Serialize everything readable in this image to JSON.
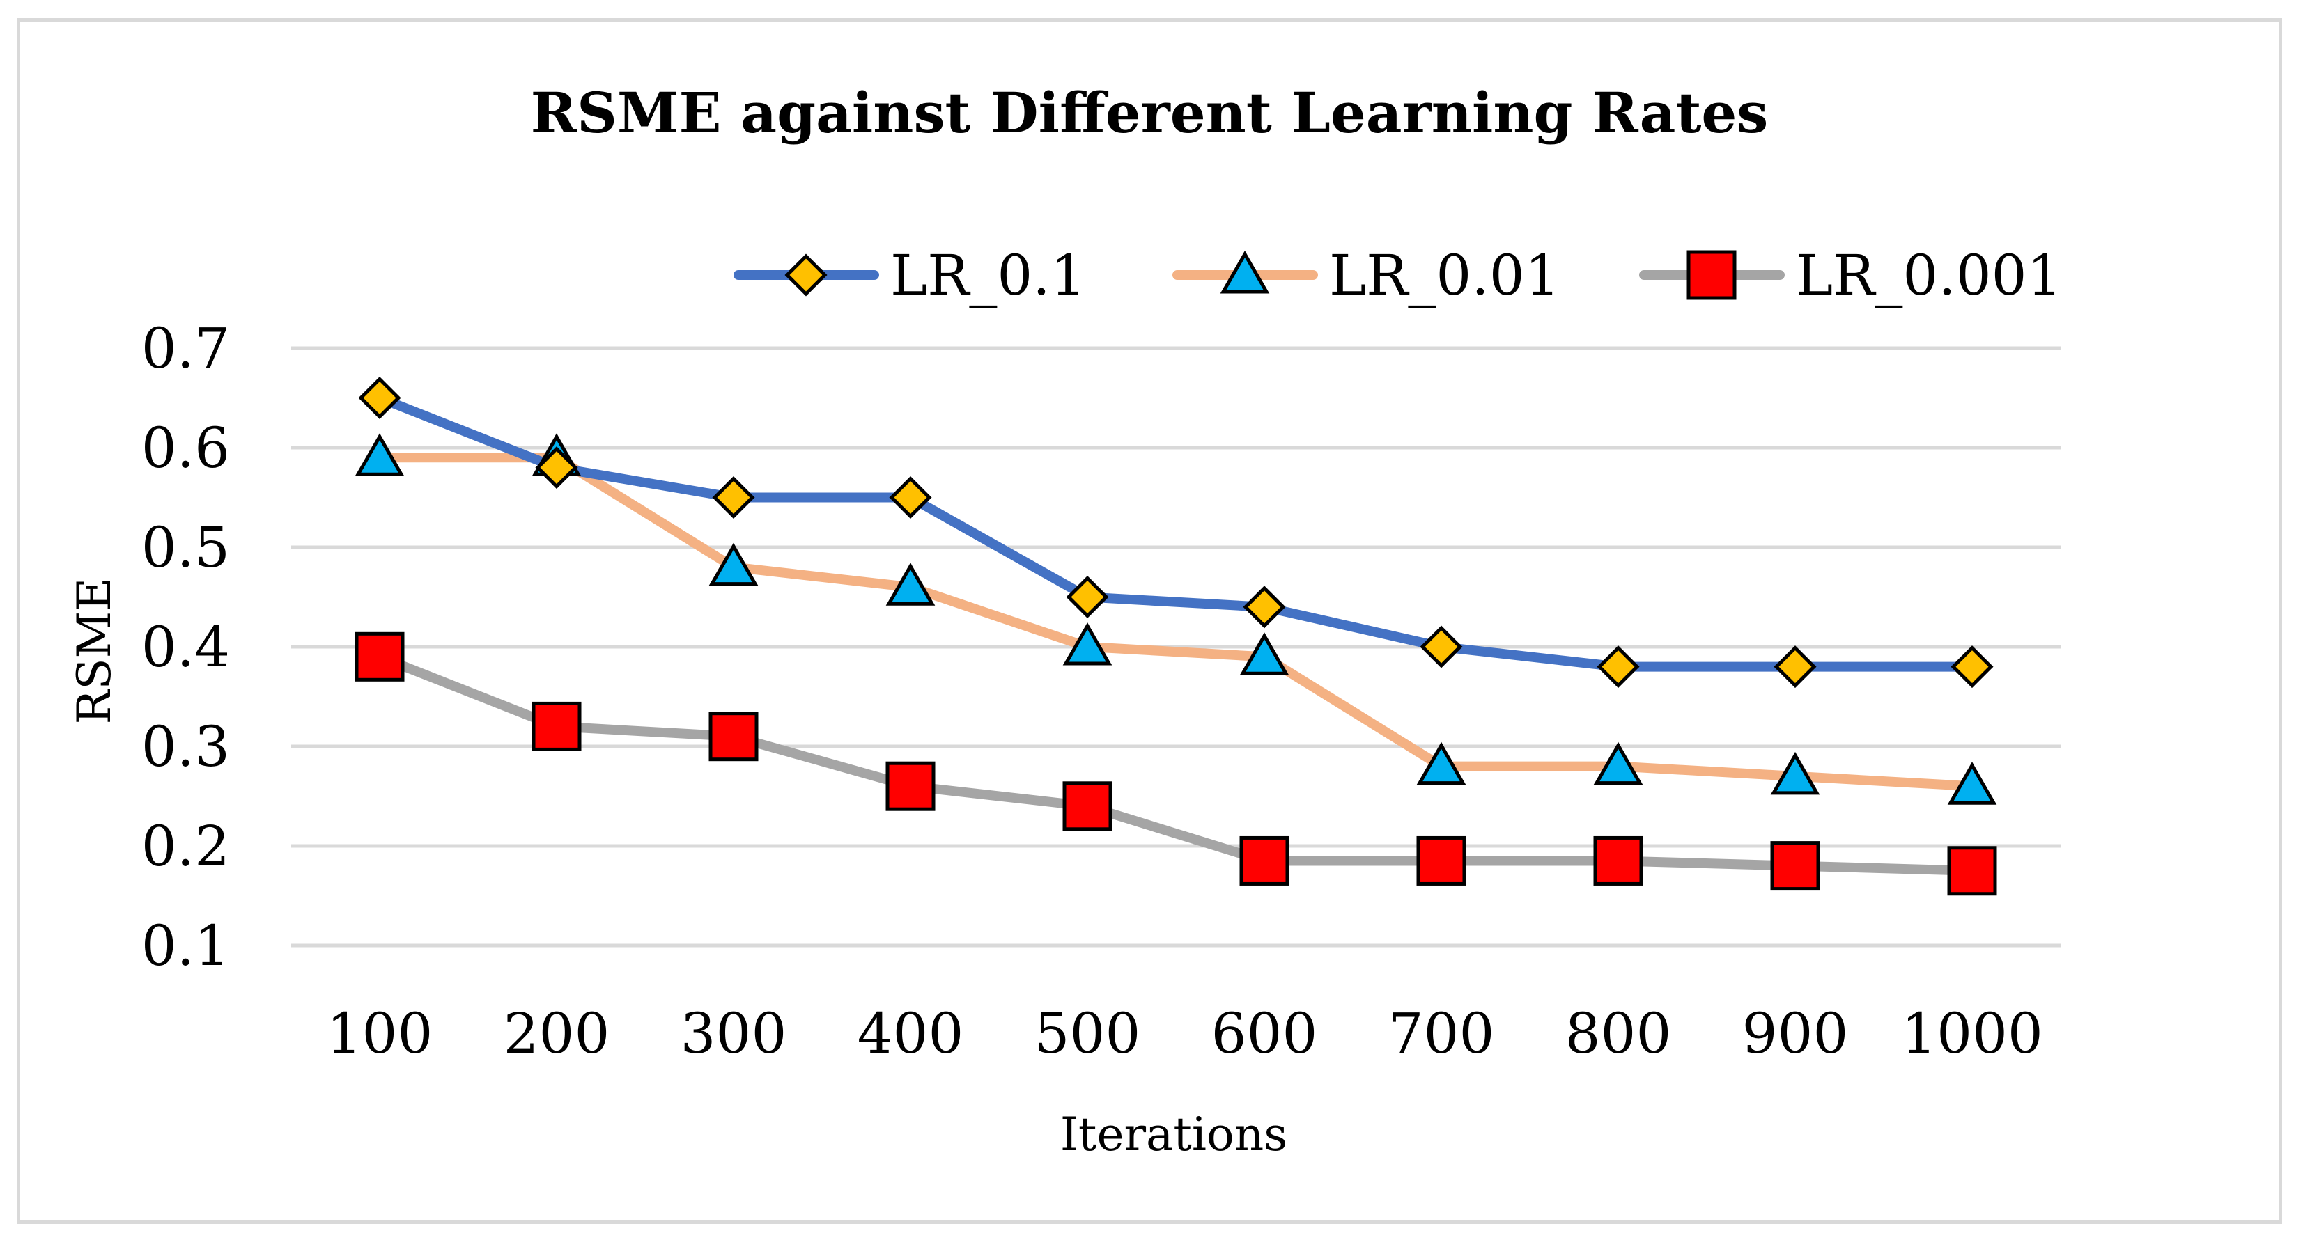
{
  "chart_data": {
    "type": "line",
    "title": "RSME against Different Learning Rates",
    "xlabel": "Iterations",
    "ylabel": "RSME",
    "categories": [
      "100",
      "200",
      "300",
      "400",
      "500",
      "600",
      "700",
      "800",
      "900",
      "1000"
    ],
    "ylim": [
      0.1,
      0.7
    ],
    "yticks": [
      0.1,
      0.2,
      0.3,
      0.4,
      0.5,
      0.6,
      0.7
    ],
    "ytick_labels": [
      "0.1",
      "0.2",
      "0.3",
      "0.4",
      "0.5",
      "0.6",
      "0.7"
    ],
    "grid": true,
    "legend_position": "top-right",
    "series": [
      {
        "name": "LR_0.1",
        "line_color": "#4472c4",
        "marker": "diamond",
        "marker_color": "#ffc000",
        "values": [
          0.65,
          0.58,
          0.55,
          0.55,
          0.45,
          0.44,
          0.4,
          0.38,
          0.38,
          0.38
        ]
      },
      {
        "name": "LR_0.01",
        "line_color": "#f4b183",
        "marker": "triangle",
        "marker_color": "#00b0f0",
        "values": [
          0.59,
          0.59,
          0.48,
          0.46,
          0.4,
          0.39,
          0.28,
          0.28,
          0.27,
          0.26
        ]
      },
      {
        "name": "LR_0.001",
        "line_color": "#a5a5a5",
        "marker": "square",
        "marker_color": "#ff0000",
        "values": [
          0.39,
          0.32,
          0.31,
          0.26,
          0.24,
          0.185,
          0.185,
          0.185,
          0.18,
          0.175
        ]
      }
    ]
  }
}
